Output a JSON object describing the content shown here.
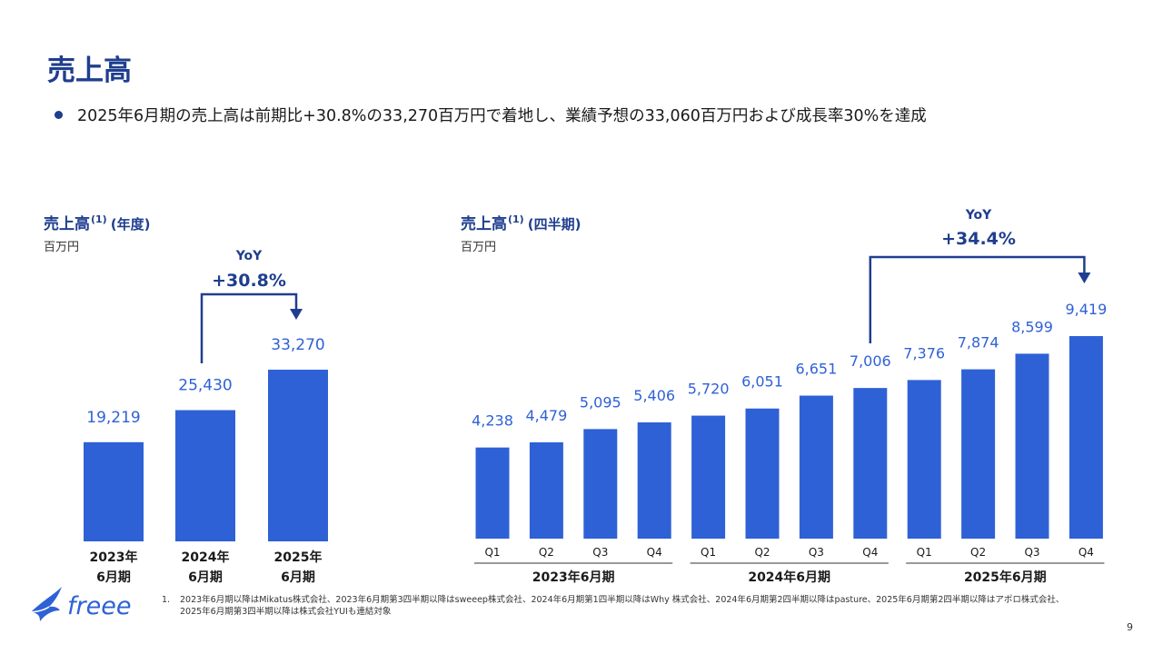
{
  "page": {
    "title": "売上高",
    "bullet": "2025年6月期の売上高は前期比+30.8%の33,270百万円で着地し、業績予想の33,060百万円および成長率30%を達成",
    "page_number": "9",
    "logo_text": "freee",
    "footnote_number": "1.",
    "footnote_line1": "2023年6月期以降はMikatus株式会社、2023年6月期第3四半期以降はsweeep株式会社、2024年6月期第1四半期以降はWhy 株式会社、2024年6月期第2四半期以降はpasture、2025年6月期第2四半期以降はアポロ株式会社、",
    "footnote_line2": "2025年6月期第3四半期以降は株式会社YUIも連結対象"
  },
  "colors": {
    "bar": "#2f61d6",
    "label": "#2f61d6",
    "accent": "#1f3e8f",
    "text": "#1a1a1a"
  },
  "icons": {
    "logo": "freee-bird-logo",
    "bullet": "bullet-dot"
  },
  "annual": {
    "title_main": "売上高",
    "title_sup": "(1)",
    "title_paren": "(年度)",
    "unit": "百万円",
    "yoy_label": "YoY",
    "yoy_value": "+30.8%"
  },
  "quarterly": {
    "title_main": "売上高",
    "title_sup": "(1)",
    "title_paren": "(四半期)",
    "unit": "百万円",
    "yoy_label": "YoY",
    "yoy_value": "+34.4%"
  },
  "chart_data": [
    {
      "type": "bar",
      "title": "売上高 (年度)",
      "unit": "百万円",
      "categories": [
        "2023年\n6月期",
        "2024年\n6月期",
        "2025年\n6月期"
      ],
      "values": [
        19219,
        25430,
        33270
      ],
      "value_labels": [
        "19,219",
        "25,430",
        "33,270"
      ],
      "annotation": "YoY +30.8%",
      "grid": false
    },
    {
      "type": "bar",
      "title": "売上高 (四半期)",
      "unit": "百万円",
      "categories": [
        "Q1",
        "Q2",
        "Q3",
        "Q4",
        "Q1",
        "Q2",
        "Q3",
        "Q4",
        "Q1",
        "Q2",
        "Q3",
        "Q4"
      ],
      "groups": [
        "2023年6月期",
        "2024年6月期",
        "2025年6月期"
      ],
      "values": [
        4238,
        4479,
        5095,
        5406,
        5720,
        6051,
        6651,
        7006,
        7376,
        7874,
        8599,
        9419
      ],
      "value_labels": [
        "4,238",
        "4,479",
        "5,095",
        "5,406",
        "5,720",
        "6,051",
        "6,651",
        "7,006",
        "7,376",
        "7,874",
        "8,599",
        "9,419"
      ],
      "annotation": "YoY +34.4%",
      "grid": false
    }
  ]
}
